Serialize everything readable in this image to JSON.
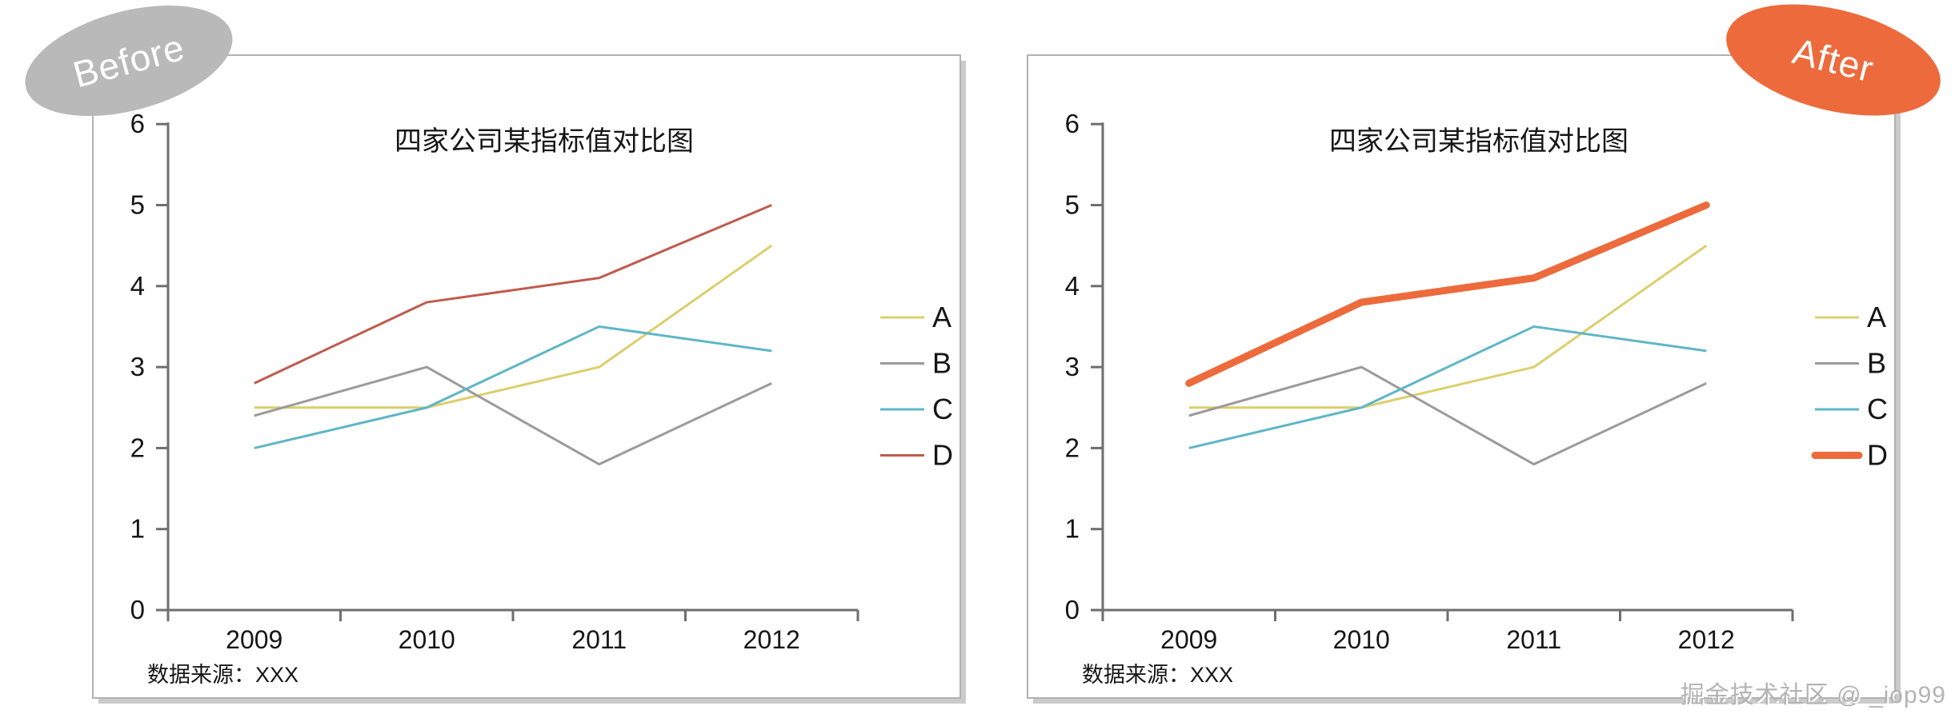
{
  "page": {
    "watermark": "掘金技术社区 @ _iop99"
  },
  "badges": {
    "before": {
      "label": "Before",
      "color": "#b9b9b9",
      "text_color": "#ffffff"
    },
    "after": {
      "label": "After",
      "color": "#ed6a3c",
      "text_color": "#ffffff"
    }
  },
  "chart_data": [
    {
      "type": "line",
      "variant": "before",
      "title": "四家公司某指标值对比图",
      "categories": [
        "2009",
        "2010",
        "2011",
        "2012"
      ],
      "series": [
        {
          "name": "A",
          "values": [
            2.5,
            2.5,
            3.0,
            4.5
          ],
          "color": "#dccf6d",
          "line_width": 3
        },
        {
          "name": "B",
          "values": [
            2.4,
            3.0,
            1.8,
            2.8
          ],
          "color": "#9b9b9b",
          "line_width": 3
        },
        {
          "name": "C",
          "values": [
            2.0,
            2.5,
            3.5,
            3.2
          ],
          "color": "#5fb6c6",
          "line_width": 3
        },
        {
          "name": "D",
          "values": [
            2.8,
            3.8,
            4.1,
            5.0
          ],
          "color": "#bf5b4d",
          "line_width": 3
        }
      ],
      "ylim": [
        0,
        6
      ],
      "ytick_step": 1,
      "grid": false,
      "legend_position": "right",
      "axis_color": "#6e6e6e",
      "text_color": "#161616",
      "source_note": "数据来源：XXX"
    },
    {
      "type": "line",
      "variant": "after",
      "title": "四家公司某指标值对比图",
      "categories": [
        "2009",
        "2010",
        "2011",
        "2012"
      ],
      "series": [
        {
          "name": "A",
          "values": [
            2.5,
            2.5,
            3.0,
            4.5
          ],
          "color": "#dccf6d",
          "line_width": 3
        },
        {
          "name": "B",
          "values": [
            2.4,
            3.0,
            1.8,
            2.8
          ],
          "color": "#9b9b9b",
          "line_width": 3
        },
        {
          "name": "C",
          "values": [
            2.0,
            2.5,
            3.5,
            3.2
          ],
          "color": "#5fb6c6",
          "line_width": 3
        },
        {
          "name": "D",
          "values": [
            2.8,
            3.8,
            4.1,
            5.0
          ],
          "color": "#ed6a3c",
          "line_width": 9
        }
      ],
      "ylim": [
        0,
        6
      ],
      "ytick_step": 1,
      "grid": false,
      "legend_position": "right",
      "axis_color": "#6e6e6e",
      "text_color": "#161616",
      "source_note": "数据来源：XXX"
    }
  ]
}
